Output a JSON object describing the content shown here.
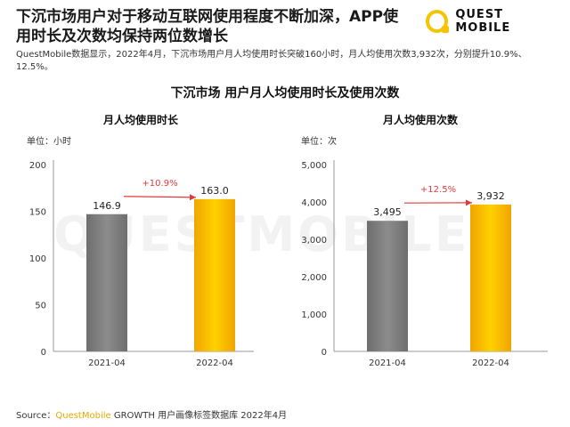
{
  "header": {
    "headline": "下沉市场用户对于移动互联网使用程度不断加深，APP使用时长及次数均保持两位数增长",
    "logo_text": "QUEST MOBILE"
  },
  "description": "QuestMobile数据显示，2022年4月，下沉市场用户月人均使用时长突破160小时，月人均使用次数3,932次，分别提升10.9%、12.5%。",
  "chart_title": "下沉市场 用户月人均使用时长及使用次数",
  "watermark": "QUESTMOBILE",
  "source": {
    "prefix": "Source：",
    "brand": "QuestMobile",
    "rest": " GROWTH 用户画像标签数据库 2022年4月"
  },
  "colors": {
    "bar_gray": "#8c8c8c",
    "bar_yellow": "#f7b900",
    "growth_arrow": "#e23a3a"
  },
  "chart_data": [
    {
      "type": "bar",
      "title": "月人均使用时长",
      "unit_label": "单位：小时",
      "categories": [
        "2021-04",
        "2022-04"
      ],
      "values": [
        146.9,
        163.0
      ],
      "value_labels": [
        "146.9",
        "163.0"
      ],
      "yticks": [
        0,
        50,
        100,
        150,
        200
      ],
      "ytick_labels": [
        "0",
        "50",
        "100",
        "150",
        "200"
      ],
      "ylim": [
        0,
        200
      ],
      "growth_label": "+10.9%"
    },
    {
      "type": "bar",
      "title": "月人均使用次数",
      "unit_label": "单位：次",
      "categories": [
        "2021-04",
        "2022-04"
      ],
      "values": [
        3495,
        3932
      ],
      "value_labels": [
        "3,495",
        "3,932"
      ],
      "yticks": [
        0,
        1000,
        2000,
        3000,
        4000,
        5000
      ],
      "ytick_labels": [
        "0",
        "1,000",
        "2,000",
        "3,000",
        "4,000",
        "5,000"
      ],
      "ylim": [
        0,
        5000
      ],
      "growth_label": "+12.5%"
    }
  ]
}
